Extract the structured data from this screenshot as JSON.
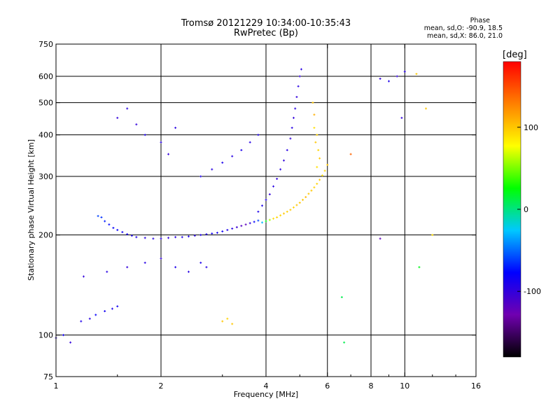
{
  "chart_data": {
    "type": "scatter",
    "title": "Tromsø 20121229 10:34:00-10:35:43",
    "subtitle": "RwPretec (Bp)",
    "xlabel": "Frequency [MHz]",
    "ylabel": "Stationary phase Virtual Height [km]",
    "x_scale": "log",
    "y_scale": "log",
    "xlim": [
      1,
      16
    ],
    "ylim": [
      75,
      750
    ],
    "x_ticks": [
      "1",
      "2",
      "4",
      "6",
      "8",
      "10",
      "16"
    ],
    "y_ticks": [
      "75",
      "100",
      "200",
      "300",
      "400",
      "500",
      "600",
      "750"
    ],
    "grid": true,
    "phase_stats": {
      "header": "Phase",
      "o_line": "mean, sd,O: -90.9, 18.5",
      "x_line": "mean, sd,X: 86.0, 21.0"
    },
    "colorbar": {
      "label": "[deg]",
      "range": [
        -180,
        180
      ],
      "ticks": [
        "100",
        "0",
        "-100"
      ],
      "colors": [
        "#000000",
        "#7000b0",
        "#0000ff",
        "#00c8ff",
        "#00ff00",
        "#ffff00",
        "#ff8000",
        "#ff0000"
      ]
    },
    "series": [
      {
        "points": [
          [
            1.0,
            98,
            -95
          ],
          [
            1.05,
            100,
            -85
          ],
          [
            1.1,
            95,
            -100
          ],
          [
            1.18,
            110,
            -90
          ],
          [
            1.25,
            112,
            -95
          ],
          [
            1.3,
            115,
            -80
          ],
          [
            1.38,
            118,
            -85
          ],
          [
            1.45,
            120,
            -90
          ],
          [
            1.5,
            122,
            -85
          ],
          [
            1.32,
            228,
            -60
          ],
          [
            1.35,
            226,
            -65
          ],
          [
            1.38,
            220,
            -70
          ],
          [
            1.42,
            215,
            -75
          ],
          [
            1.46,
            210,
            -80
          ],
          [
            1.5,
            207,
            -80
          ],
          [
            1.55,
            204,
            -85
          ],
          [
            1.6,
            201,
            -85
          ],
          [
            1.65,
            199,
            -90
          ],
          [
            1.7,
            197,
            -90
          ],
          [
            1.8,
            196,
            -95
          ],
          [
            1.9,
            195,
            -95
          ],
          [
            2.0,
            195,
            -95
          ],
          [
            2.1,
            196,
            -100
          ],
          [
            2.2,
            197,
            -95
          ],
          [
            2.3,
            197,
            -90
          ],
          [
            2.4,
            198,
            -90
          ],
          [
            2.5,
            199,
            -95
          ],
          [
            2.6,
            200,
            -90
          ],
          [
            2.7,
            201,
            -90
          ],
          [
            2.8,
            202,
            -85
          ],
          [
            2.9,
            203,
            -85
          ],
          [
            3.0,
            205,
            -85
          ],
          [
            3.1,
            207,
            -90
          ],
          [
            3.2,
            209,
            -95
          ],
          [
            3.3,
            211,
            -105
          ],
          [
            3.4,
            213,
            -115
          ],
          [
            3.5,
            215,
            -120
          ],
          [
            3.6,
            217,
            -100
          ],
          [
            3.7,
            219,
            -80
          ],
          [
            3.8,
            221,
            -60
          ],
          [
            3.9,
            218,
            -30
          ],
          [
            4.0,
            220,
            20
          ],
          [
            4.1,
            222,
            60
          ],
          [
            4.2,
            224,
            90
          ],
          [
            4.3,
            226,
            95
          ],
          [
            4.4,
            229,
            95
          ],
          [
            4.5,
            232,
            100
          ],
          [
            4.6,
            235,
            95
          ],
          [
            4.7,
            238,
            100
          ],
          [
            4.8,
            242,
            95
          ],
          [
            4.9,
            246,
            100
          ],
          [
            5.0,
            250,
            100
          ],
          [
            5.1,
            255,
            100
          ],
          [
            5.2,
            260,
            105
          ],
          [
            5.3,
            266,
            100
          ],
          [
            5.4,
            272,
            100
          ],
          [
            5.5,
            278,
            95
          ],
          [
            5.6,
            285,
            95
          ],
          [
            5.7,
            293,
            100
          ],
          [
            5.8,
            302,
            90
          ],
          [
            5.9,
            312,
            95
          ],
          [
            6.0,
            325,
            100
          ],
          [
            3.8,
            235,
            -90
          ],
          [
            3.9,
            245,
            -90
          ],
          [
            4.0,
            255,
            -95
          ],
          [
            4.1,
            265,
            -100
          ],
          [
            4.2,
            280,
            -95
          ],
          [
            4.3,
            295,
            -100
          ],
          [
            4.4,
            315,
            -95
          ],
          [
            4.5,
            335,
            -100
          ],
          [
            4.6,
            360,
            -95
          ],
          [
            4.7,
            390,
            -100
          ],
          [
            4.75,
            420,
            -95
          ],
          [
            4.8,
            450,
            -100
          ],
          [
            4.85,
            480,
            -95
          ],
          [
            4.9,
            520,
            -100
          ],
          [
            4.95,
            560,
            -95
          ],
          [
            5.0,
            600,
            -100
          ],
          [
            5.05,
            630,
            -95
          ],
          [
            5.5,
            420,
            90
          ],
          [
            5.6,
            400,
            95
          ],
          [
            5.55,
            380,
            100
          ],
          [
            5.65,
            360,
            95
          ],
          [
            5.7,
            340,
            100
          ],
          [
            5.5,
            460,
            110
          ],
          [
            5.45,
            500,
            100
          ],
          [
            5.6,
            320,
            90
          ],
          [
            2.6,
            300,
            -90
          ],
          [
            2.8,
            315,
            -95
          ],
          [
            3.0,
            330,
            -90
          ],
          [
            3.2,
            345,
            -95
          ],
          [
            3.4,
            360,
            -90
          ],
          [
            3.6,
            380,
            -95
          ],
          [
            3.8,
            400,
            -90
          ],
          [
            1.2,
            150,
            -100
          ],
          [
            1.4,
            155,
            -95
          ],
          [
            1.6,
            160,
            -100
          ],
          [
            1.8,
            165,
            -95
          ],
          [
            2.0,
            170,
            -100
          ],
          [
            2.2,
            160,
            -90
          ],
          [
            2.4,
            155,
            -95
          ],
          [
            2.6,
            165,
            -90
          ],
          [
            2.7,
            160,
            -95
          ],
          [
            3.0,
            110,
            100
          ],
          [
            3.1,
            112,
            95
          ],
          [
            3.2,
            108,
            100
          ],
          [
            1.5,
            450,
            -100
          ],
          [
            1.6,
            480,
            -95
          ],
          [
            1.7,
            430,
            -100
          ],
          [
            1.8,
            400,
            -90
          ],
          [
            2.0,
            380,
            -95
          ],
          [
            2.1,
            350,
            -100
          ],
          [
            2.2,
            420,
            -95
          ],
          [
            7.0,
            350,
            140
          ],
          [
            8.5,
            590,
            -100
          ],
          [
            9.0,
            580,
            -90
          ],
          [
            9.5,
            600,
            -100
          ],
          [
            10.0,
            620,
            -95
          ],
          [
            8.5,
            195,
            -120
          ],
          [
            9.8,
            450,
            -100
          ],
          [
            10.8,
            610,
            100
          ],
          [
            11.5,
            480,
            100
          ],
          [
            12.0,
            200,
            90
          ],
          [
            11.0,
            160,
            20
          ],
          [
            6.6,
            130,
            10
          ],
          [
            6.7,
            95,
            10
          ]
        ]
      }
    ]
  }
}
